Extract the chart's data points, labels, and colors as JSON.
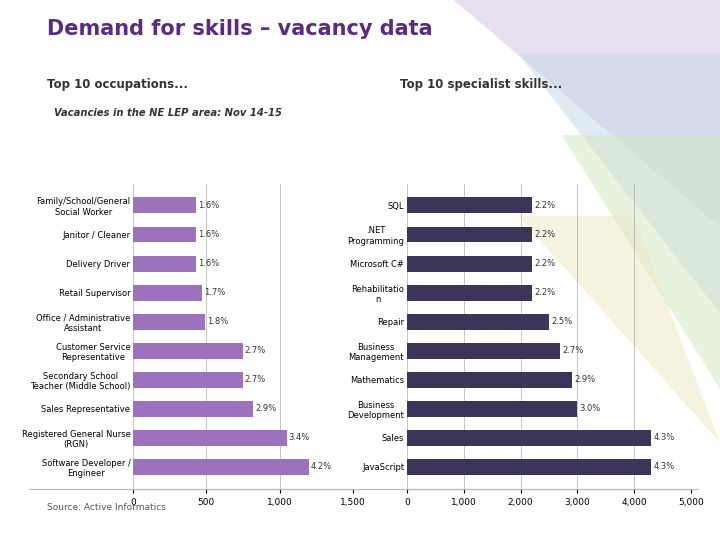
{
  "title": "Demand for skills – vacancy data",
  "subtitle_left": "Top 10 occupations...",
  "subtitle_right": "Top 10 specialist skills...",
  "vacancies_label": "Vacancies in the NE LEP area: Nov 14-15",
  "source": "Source: Active Informatics",
  "left_categories": [
    "Software Developer /\nEngineer",
    "Registered General Nurse\n(RGN)",
    "Sales Representative",
    "Secondary School\nTeacher (Middle School)",
    "Customer Service\nRepresentative",
    "Office / Administrative\nAssistant",
    "Retail Supervisor",
    "Delivery Driver",
    "Janitor / Cleaner",
    "Family/School/General\nSocial Worker"
  ],
  "left_values": [
    1200,
    1050,
    820,
    750,
    750,
    490,
    470,
    430,
    430,
    430
  ],
  "left_labels": [
    "4.2%",
    "3.4%",
    "2.9%",
    "2.7%",
    "2.7%",
    "1.8%",
    "1.7%",
    "1.6%",
    "1.6%",
    "1.6%"
  ],
  "left_color": "#9B72BB",
  "left_xlim": [
    0,
    1500
  ],
  "left_xticks": [
    0,
    500,
    1000,
    1500
  ],
  "left_xticklabels": [
    "0",
    "500",
    "1,000",
    "1,500"
  ],
  "right_categories": [
    "JavaScript",
    "Sales",
    "Business\nDevelopment",
    "Mathematics",
    "Business\nManagement",
    "Repair",
    "Rehabilitatio\nn",
    "Microsoft C#",
    ".NET\nProgramming",
    "SQL"
  ],
  "right_values": [
    4300,
    4300,
    3000,
    2900,
    2700,
    2500,
    2200,
    2200,
    2200,
    2200
  ],
  "right_labels": [
    "4.3%",
    "4.3%",
    "3.0%",
    "2.9%",
    "2.7%",
    "2.5%",
    "2.2%",
    "2.2%",
    "2.2%",
    "2.2%"
  ],
  "right_color": "#3D3459",
  "right_xlim": [
    0,
    5000
  ],
  "right_xticks": [
    0,
    1000,
    2000,
    3000,
    4000,
    5000
  ],
  "right_xticklabels": [
    "0",
    "1,000",
    "2,000",
    "3,000",
    "4,000",
    "5,000"
  ],
  "bg_color": "#FFFFFF",
  "title_color": "#5B2B82",
  "subtitle_color": "#333333",
  "tri_colors": [
    "#D4C5E2",
    "#C5D9E8",
    "#D5E8C5",
    "#EDE8C8"
  ],
  "tri_coords": [
    [
      [
        0.63,
        1.0,
        1.0
      ],
      [
        1.0,
        0.58,
        1.0
      ]
    ],
    [
      [
        0.72,
        1.0,
        1.0
      ],
      [
        0.9,
        0.42,
        0.9
      ]
    ],
    [
      [
        0.78,
        1.0,
        1.0
      ],
      [
        0.75,
        0.28,
        0.75
      ]
    ],
    [
      [
        0.72,
        1.0,
        0.88
      ],
      [
        0.6,
        0.18,
        0.6
      ]
    ]
  ]
}
